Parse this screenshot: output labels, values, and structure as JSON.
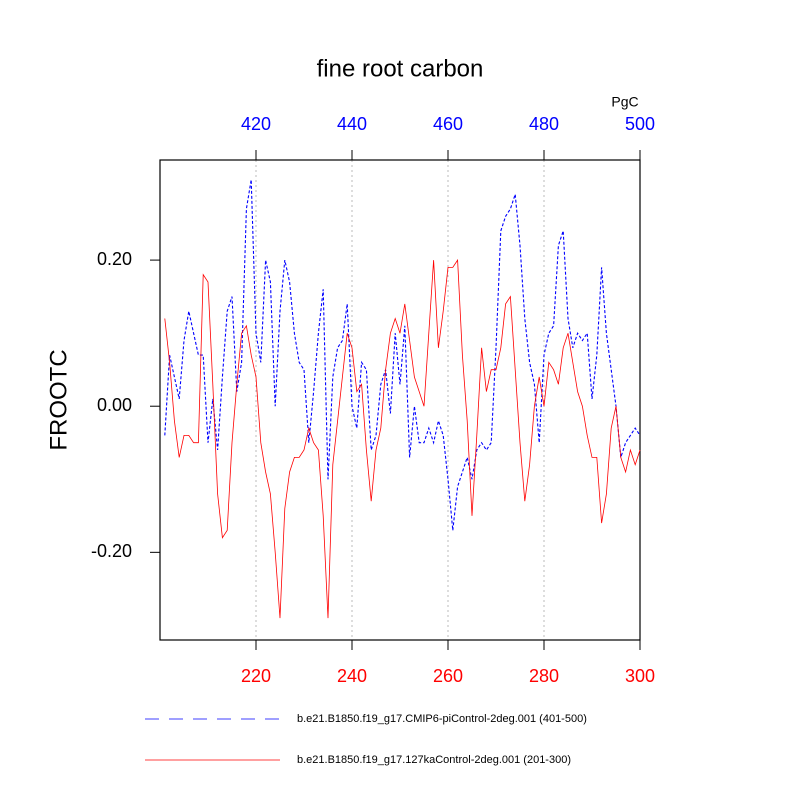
{
  "chart_data": {
    "type": "line",
    "title": "fine root carbon",
    "ylabel": "FROOTC",
    "x2label": "PgC",
    "xlim": [
      200,
      300
    ],
    "xticks": [
      220,
      240,
      260,
      280,
      300
    ],
    "xtick_color": "#ff0000",
    "x2lim": [
      400,
      500
    ],
    "x2ticks": [
      420,
      440,
      460,
      480,
      500
    ],
    "x2tick_color": "#0000ff",
    "ylim": [
      -0.32,
      0.337
    ],
    "yticks": [
      {
        "value": -0.2,
        "label": "-0.20"
      },
      {
        "value": 0,
        "label": "0.00"
      },
      {
        "value": 0.2,
        "label": "0.20"
      }
    ],
    "grid": "x",
    "series": [
      {
        "name": "b.e21.B1850.f19_g17.CMIP6-piControl-2deg.001 (401-500)",
        "color": "#0000ff",
        "dashed": true,
        "axis": "x2",
        "x": [
          401,
          402,
          403,
          404,
          405,
          406,
          407,
          408,
          409,
          410,
          411,
          412,
          413,
          414,
          415,
          416,
          417,
          418,
          419,
          420,
          421,
          422,
          423,
          424,
          425,
          426,
          427,
          428,
          429,
          430,
          431,
          432,
          433,
          434,
          435,
          436,
          437,
          438,
          439,
          440,
          441,
          442,
          443,
          444,
          445,
          446,
          447,
          448,
          449,
          450,
          451,
          452,
          453,
          454,
          455,
          456,
          457,
          458,
          459,
          460,
          461,
          462,
          463,
          464,
          465,
          466,
          467,
          468,
          469,
          470,
          471,
          472,
          473,
          474,
          475,
          476,
          477,
          478,
          479,
          480,
          481,
          482,
          483,
          484,
          485,
          486,
          487,
          488,
          489,
          490,
          491,
          492,
          493,
          494,
          495,
          496,
          497,
          498,
          499,
          500
        ],
        "values": [
          -0.04,
          0.07,
          0.04,
          0.01,
          0.09,
          0.13,
          0.1,
          0.07,
          0.07,
          -0.05,
          0.01,
          -0.06,
          0.04,
          0.13,
          0.15,
          0.02,
          0.06,
          0.27,
          0.31,
          0.1,
          0.06,
          0.2,
          0.17,
          0.0,
          0.13,
          0.2,
          0.17,
          0.1,
          0.06,
          0.05,
          -0.05,
          0.02,
          0.1,
          0.16,
          -0.1,
          0.04,
          0.08,
          0.09,
          0.14,
          0.0,
          -0.03,
          0.06,
          0.05,
          -0.06,
          -0.04,
          0.03,
          0.05,
          -0.01,
          0.1,
          0.03,
          0.11,
          -0.07,
          0.0,
          -0.05,
          -0.05,
          -0.03,
          -0.05,
          -0.02,
          -0.04,
          -0.1,
          -0.17,
          -0.11,
          -0.09,
          -0.07,
          -0.1,
          -0.06,
          -0.05,
          -0.06,
          -0.05,
          0.08,
          0.24,
          0.26,
          0.27,
          0.29,
          0.22,
          0.12,
          0.06,
          0.03,
          -0.05,
          0.07,
          0.1,
          0.11,
          0.22,
          0.24,
          0.12,
          0.08,
          0.1,
          0.09,
          0.1,
          0.01,
          0.07,
          0.19,
          0.1,
          0.05,
          0.0,
          -0.07,
          -0.05,
          -0.04,
          -0.03,
          -0.04
        ]
      },
      {
        "name": "b.e21.B1850.f19_g17.127kaControl-2deg.001 (201-300)",
        "color": "#ff0000",
        "dashed": false,
        "axis": "x",
        "x": [
          201,
          202,
          203,
          204,
          205,
          206,
          207,
          208,
          209,
          210,
          211,
          212,
          213,
          214,
          215,
          216,
          217,
          218,
          219,
          220,
          221,
          222,
          223,
          224,
          225,
          226,
          227,
          228,
          229,
          230,
          231,
          232,
          233,
          234,
          235,
          236,
          237,
          238,
          239,
          240,
          241,
          242,
          243,
          244,
          245,
          246,
          247,
          248,
          249,
          250,
          251,
          252,
          253,
          254,
          255,
          256,
          257,
          258,
          259,
          260,
          261,
          262,
          263,
          264,
          265,
          266,
          267,
          268,
          269,
          270,
          271,
          272,
          273,
          274,
          275,
          276,
          277,
          278,
          279,
          280,
          281,
          282,
          283,
          284,
          285,
          286,
          287,
          288,
          289,
          290,
          291,
          292,
          293,
          294,
          295,
          296,
          297,
          298,
          299,
          300
        ],
        "values": [
          0.12,
          0.06,
          -0.02,
          -0.07,
          -0.04,
          -0.04,
          -0.05,
          -0.05,
          0.18,
          0.17,
          0.03,
          -0.12,
          -0.18,
          -0.17,
          -0.05,
          0.03,
          0.1,
          0.11,
          0.07,
          0.04,
          -0.05,
          -0.09,
          -0.12,
          -0.2,
          -0.29,
          -0.14,
          -0.09,
          -0.07,
          -0.07,
          -0.06,
          -0.03,
          -0.05,
          -0.06,
          -0.15,
          -0.29,
          -0.08,
          -0.02,
          0.04,
          0.1,
          0.08,
          0.02,
          0.03,
          -0.06,
          -0.13,
          -0.06,
          -0.03,
          0.05,
          0.1,
          0.12,
          0.1,
          0.14,
          0.09,
          0.04,
          0.02,
          0.0,
          0.1,
          0.2,
          0.08,
          0.13,
          0.19,
          0.19,
          0.2,
          0.07,
          -0.02,
          -0.15,
          -0.04,
          0.08,
          0.02,
          0.05,
          0.05,
          0.08,
          0.14,
          0.15,
          0.05,
          -0.05,
          -0.13,
          -0.08,
          0.0,
          0.04,
          0.0,
          0.06,
          0.05,
          0.03,
          0.08,
          0.1,
          0.06,
          0.02,
          0.0,
          -0.04,
          -0.07,
          -0.07,
          -0.16,
          -0.12,
          -0.03,
          0.0,
          -0.07,
          -0.09,
          -0.06,
          -0.08,
          -0.06
        ]
      }
    ]
  }
}
